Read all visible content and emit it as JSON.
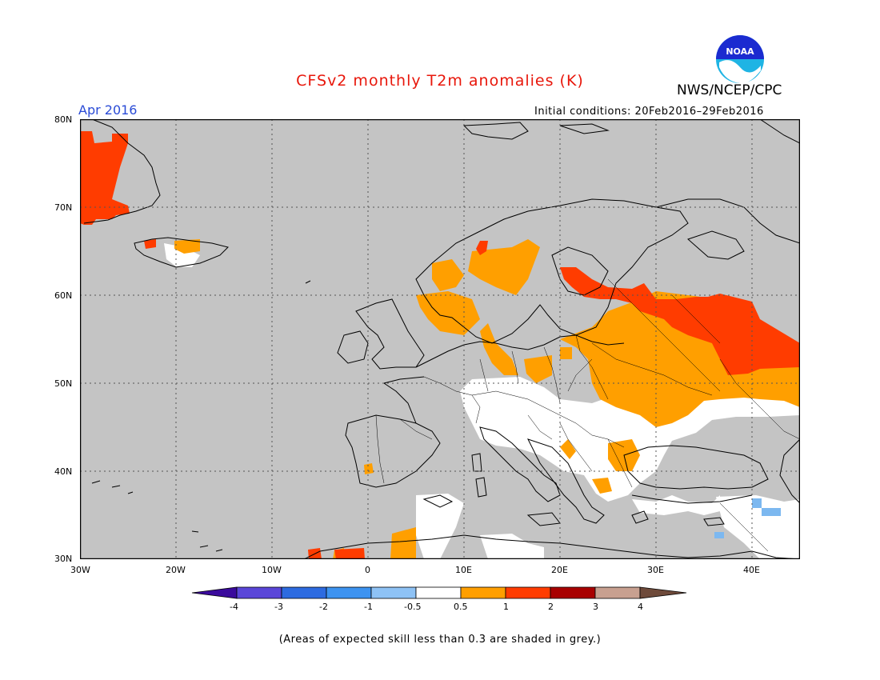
{
  "title": "CFSv2 monthly T2m anomalies (K)",
  "organization": "NWS/NCEP/CPC",
  "logo_text": "NOAA",
  "month_label": "Apr 2016",
  "initial_conditions": "Initial conditions: 20Feb2016–29Feb2016",
  "footnote": "(Areas of expected skill less than 0.3 are shaded in grey.)",
  "map": {
    "lat_labels": [
      "80N",
      "70N",
      "60N",
      "50N",
      "40N",
      "30N"
    ],
    "lon_labels": [
      "30W",
      "20W",
      "10W",
      "0",
      "10E",
      "20E",
      "30E",
      "40E"
    ],
    "colors": {
      "background": "#c4c4c4",
      "neutral": "#ffffff",
      "warm1": "#ff9f00",
      "warm2": "#ff3c00",
      "cool1": "#7cb8f0"
    }
  },
  "colorbar": {
    "labels": [
      "-4",
      "-3",
      "-2",
      "-1",
      "-0.5",
      "0.5",
      "1",
      "2",
      "3",
      "4"
    ],
    "colors": [
      "#3a0a9c",
      "#5a46d8",
      "#2d6be0",
      "#3d93f0",
      "#8ec2f5",
      "#ffffff",
      "#ff9f00",
      "#ff3c00",
      "#a80000",
      "#c8a090",
      "#6e4a3a"
    ]
  }
}
